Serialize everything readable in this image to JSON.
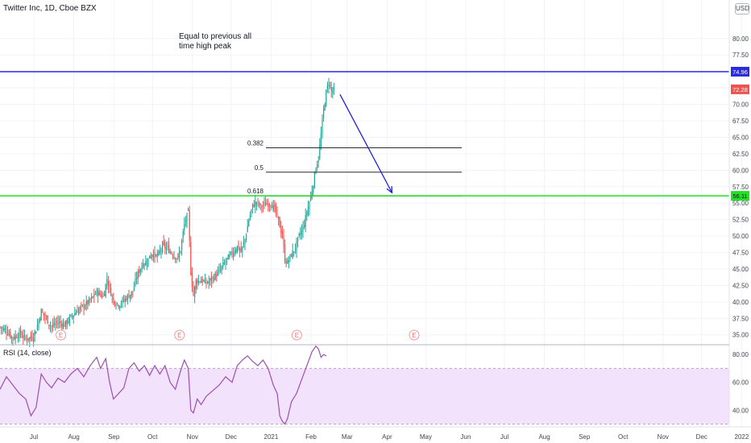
{
  "header": {
    "title": "Twitter Inc, 1D, Cboe BZX",
    "currency": "USD"
  },
  "annotation": {
    "line1": "Equal to previous all",
    "line2": "time high peak"
  },
  "chart_data": {
    "type": "candlestick",
    "symbol": "Twitter Inc",
    "interval": "1D",
    "exchange": "Cboe BZX",
    "y_ticks": [
      "80.00",
      "77.50",
      "75.00",
      "72.50",
      "70.00",
      "67.50",
      "65.00",
      "62.50",
      "60.00",
      "57.50",
      "55.00",
      "52.50",
      "50.00",
      "47.50",
      "45.00",
      "42.50",
      "40.00",
      "37.50",
      "35.00"
    ],
    "y_tick_values": [
      80,
      77.5,
      75,
      72.5,
      70,
      67.5,
      65,
      62.5,
      60,
      57.5,
      55,
      52.5,
      50,
      47.5,
      45,
      42.5,
      40,
      37.5,
      35
    ],
    "price_range": [
      33.5,
      83.4
    ],
    "x_labels": [
      "Jul",
      "Aug",
      "Sep",
      "Oct",
      "Nov",
      "Dec",
      "2021",
      "Feb",
      "Mar",
      "Apr",
      "May",
      "Jun",
      "Jul",
      "Aug",
      "Sep",
      "Oct",
      "Nov",
      "Dec",
      "2022"
    ],
    "x_label_days": [
      0,
      31,
      62,
      92,
      123,
      153,
      184,
      215,
      243,
      274,
      304,
      335,
      365,
      396,
      427,
      457,
      488,
      518,
      549
    ],
    "start_date": "2020-06-13",
    "close_path": [
      [
        0,
        36.2
      ],
      [
        5,
        35.6
      ],
      [
        10,
        34.5
      ],
      [
        15,
        35.2
      ],
      [
        20,
        34.4
      ],
      [
        25,
        34.6
      ],
      [
        28,
        35.8
      ],
      [
        32,
        38.6
      ],
      [
        36,
        37.4
      ],
      [
        40,
        36.2
      ],
      [
        45,
        37.0
      ],
      [
        50,
        36.5
      ],
      [
        55,
        37.7
      ],
      [
        60,
        38.7
      ],
      [
        65,
        39.4
      ],
      [
        70,
        40.2
      ],
      [
        75,
        41.5
      ],
      [
        80,
        40.8
      ],
      [
        83,
        43.5
      ],
      [
        85,
        42.0
      ],
      [
        88,
        40.2
      ],
      [
        92,
        39.6
      ],
      [
        96,
        40.2
      ],
      [
        100,
        41.0
      ],
      [
        103,
        41.6
      ],
      [
        106,
        43.8
      ],
      [
        110,
        45.6
      ],
      [
        114,
        46.2
      ],
      [
        118,
        47.4
      ],
      [
        122,
        46.8
      ],
      [
        126,
        48.5
      ],
      [
        130,
        48.1
      ],
      [
        134,
        47.3
      ],
      [
        138,
        46.6
      ],
      [
        140,
        48.0
      ],
      [
        143,
        51.8
      ],
      [
        146,
        53.6
      ],
      [
        148,
        44.5
      ],
      [
        150,
        41.0
      ],
      [
        152,
        43.2
      ],
      [
        156,
        43.3
      ],
      [
        160,
        42.8
      ],
      [
        165,
        43.6
      ],
      [
        170,
        44.6
      ],
      [
        175,
        46.2
      ],
      [
        180,
        47.4
      ],
      [
        184,
        48.4
      ],
      [
        187,
        47.6
      ],
      [
        190,
        49.5
      ],
      [
        193,
        52.5
      ],
      [
        196,
        54.6
      ],
      [
        199,
        55.2
      ],
      [
        202,
        54.5
      ],
      [
        206,
        54.8
      ],
      [
        210,
        55.0
      ],
      [
        213,
        54.1
      ],
      [
        216,
        52.3
      ],
      [
        219,
        50.0
      ],
      [
        221,
        46.4
      ],
      [
        223,
        46.0
      ],
      [
        226,
        47.2
      ],
      [
        229,
        48.2
      ],
      [
        232,
        50.0
      ],
      [
        235,
        51.2
      ],
      [
        238,
        53.6
      ],
      [
        241,
        56.0
      ],
      [
        243,
        58.0
      ],
      [
        245,
        60.5
      ],
      [
        247,
        61.8
      ],
      [
        249,
        65.4
      ],
      [
        251,
        69.2
      ],
      [
        253,
        71.8
      ],
      [
        255,
        73.5
      ],
      [
        257,
        72.0
      ],
      [
        259,
        72.28
      ]
    ],
    "last_price": 72.28,
    "horizontal_levels": [
      {
        "price": 74.96,
        "label": "74.96",
        "color": "#2a2ae0"
      },
      {
        "price": 56.11,
        "label": "56.11",
        "color": "#22e022"
      }
    ],
    "fibonacci": [
      {
        "ratio": "0.382",
        "price": 63.4
      },
      {
        "ratio": "0.5",
        "price": 59.7
      },
      {
        "ratio": "0.618",
        "price": 56.1
      }
    ],
    "arrow": {
      "from_day": 260,
      "from_price": 71.5,
      "to_day": 299,
      "to_price": 56.6,
      "color": "#1f1fd6"
    },
    "earnings_marks": {
      "label": "E",
      "days": [
        46,
        138,
        229,
        320
      ]
    },
    "colors": {
      "up": "#26a69a",
      "down": "#ef5350",
      "grid": "#f0f3fa",
      "rsi_line": "#9b4fb0",
      "rsi_band": "#f3e2fb"
    },
    "rsi": {
      "title": "RSI (14, close)",
      "y_ticks": [
        "80.00",
        "60.00",
        "40.00"
      ],
      "y_tick_values": [
        80,
        60,
        40
      ],
      "range": [
        28,
        87
      ],
      "band": [
        30,
        70
      ],
      "values_path": [
        [
          0,
          55
        ],
        [
          5,
          64
        ],
        [
          10,
          58
        ],
        [
          15,
          52
        ],
        [
          20,
          48
        ],
        [
          24,
          36
        ],
        [
          28,
          42
        ],
        [
          32,
          66
        ],
        [
          36,
          60
        ],
        [
          40,
          56
        ],
        [
          45,
          63
        ],
        [
          50,
          60
        ],
        [
          55,
          66
        ],
        [
          60,
          70
        ],
        [
          65,
          64
        ],
        [
          70,
          72
        ],
        [
          75,
          78
        ],
        [
          78,
          70
        ],
        [
          82,
          77
        ],
        [
          85,
          60
        ],
        [
          88,
          48
        ],
        [
          92,
          52
        ],
        [
          96,
          56
        ],
        [
          100,
          70
        ],
        [
          104,
          74
        ],
        [
          108,
          68
        ],
        [
          112,
          72
        ],
        [
          116,
          65
        ],
        [
          120,
          72
        ],
        [
          124,
          66
        ],
        [
          128,
          72
        ],
        [
          132,
          60
        ],
        [
          136,
          55
        ],
        [
          140,
          68
        ],
        [
          143,
          76
        ],
        [
          146,
          70
        ],
        [
          148,
          40
        ],
        [
          150,
          38
        ],
        [
          153,
          48
        ],
        [
          156,
          44
        ],
        [
          160,
          50
        ],
        [
          165,
          54
        ],
        [
          170,
          58
        ],
        [
          175,
          64
        ],
        [
          180,
          60
        ],
        [
          184,
          72
        ],
        [
          188,
          76
        ],
        [
          192,
          79
        ],
        [
          196,
          75
        ],
        [
          200,
          72
        ],
        [
          204,
          76
        ],
        [
          208,
          70
        ],
        [
          212,
          58
        ],
        [
          215,
          52
        ],
        [
          217,
          36
        ],
        [
          219,
          32
        ],
        [
          221,
          30
        ],
        [
          223,
          34
        ],
        [
          226,
          46
        ],
        [
          230,
          52
        ],
        [
          234,
          62
        ],
        [
          238,
          72
        ],
        [
          242,
          82
        ],
        [
          245,
          86
        ],
        [
          247,
          84
        ],
        [
          249,
          78
        ],
        [
          251,
          80
        ],
        [
          253,
          79
        ]
      ]
    }
  }
}
